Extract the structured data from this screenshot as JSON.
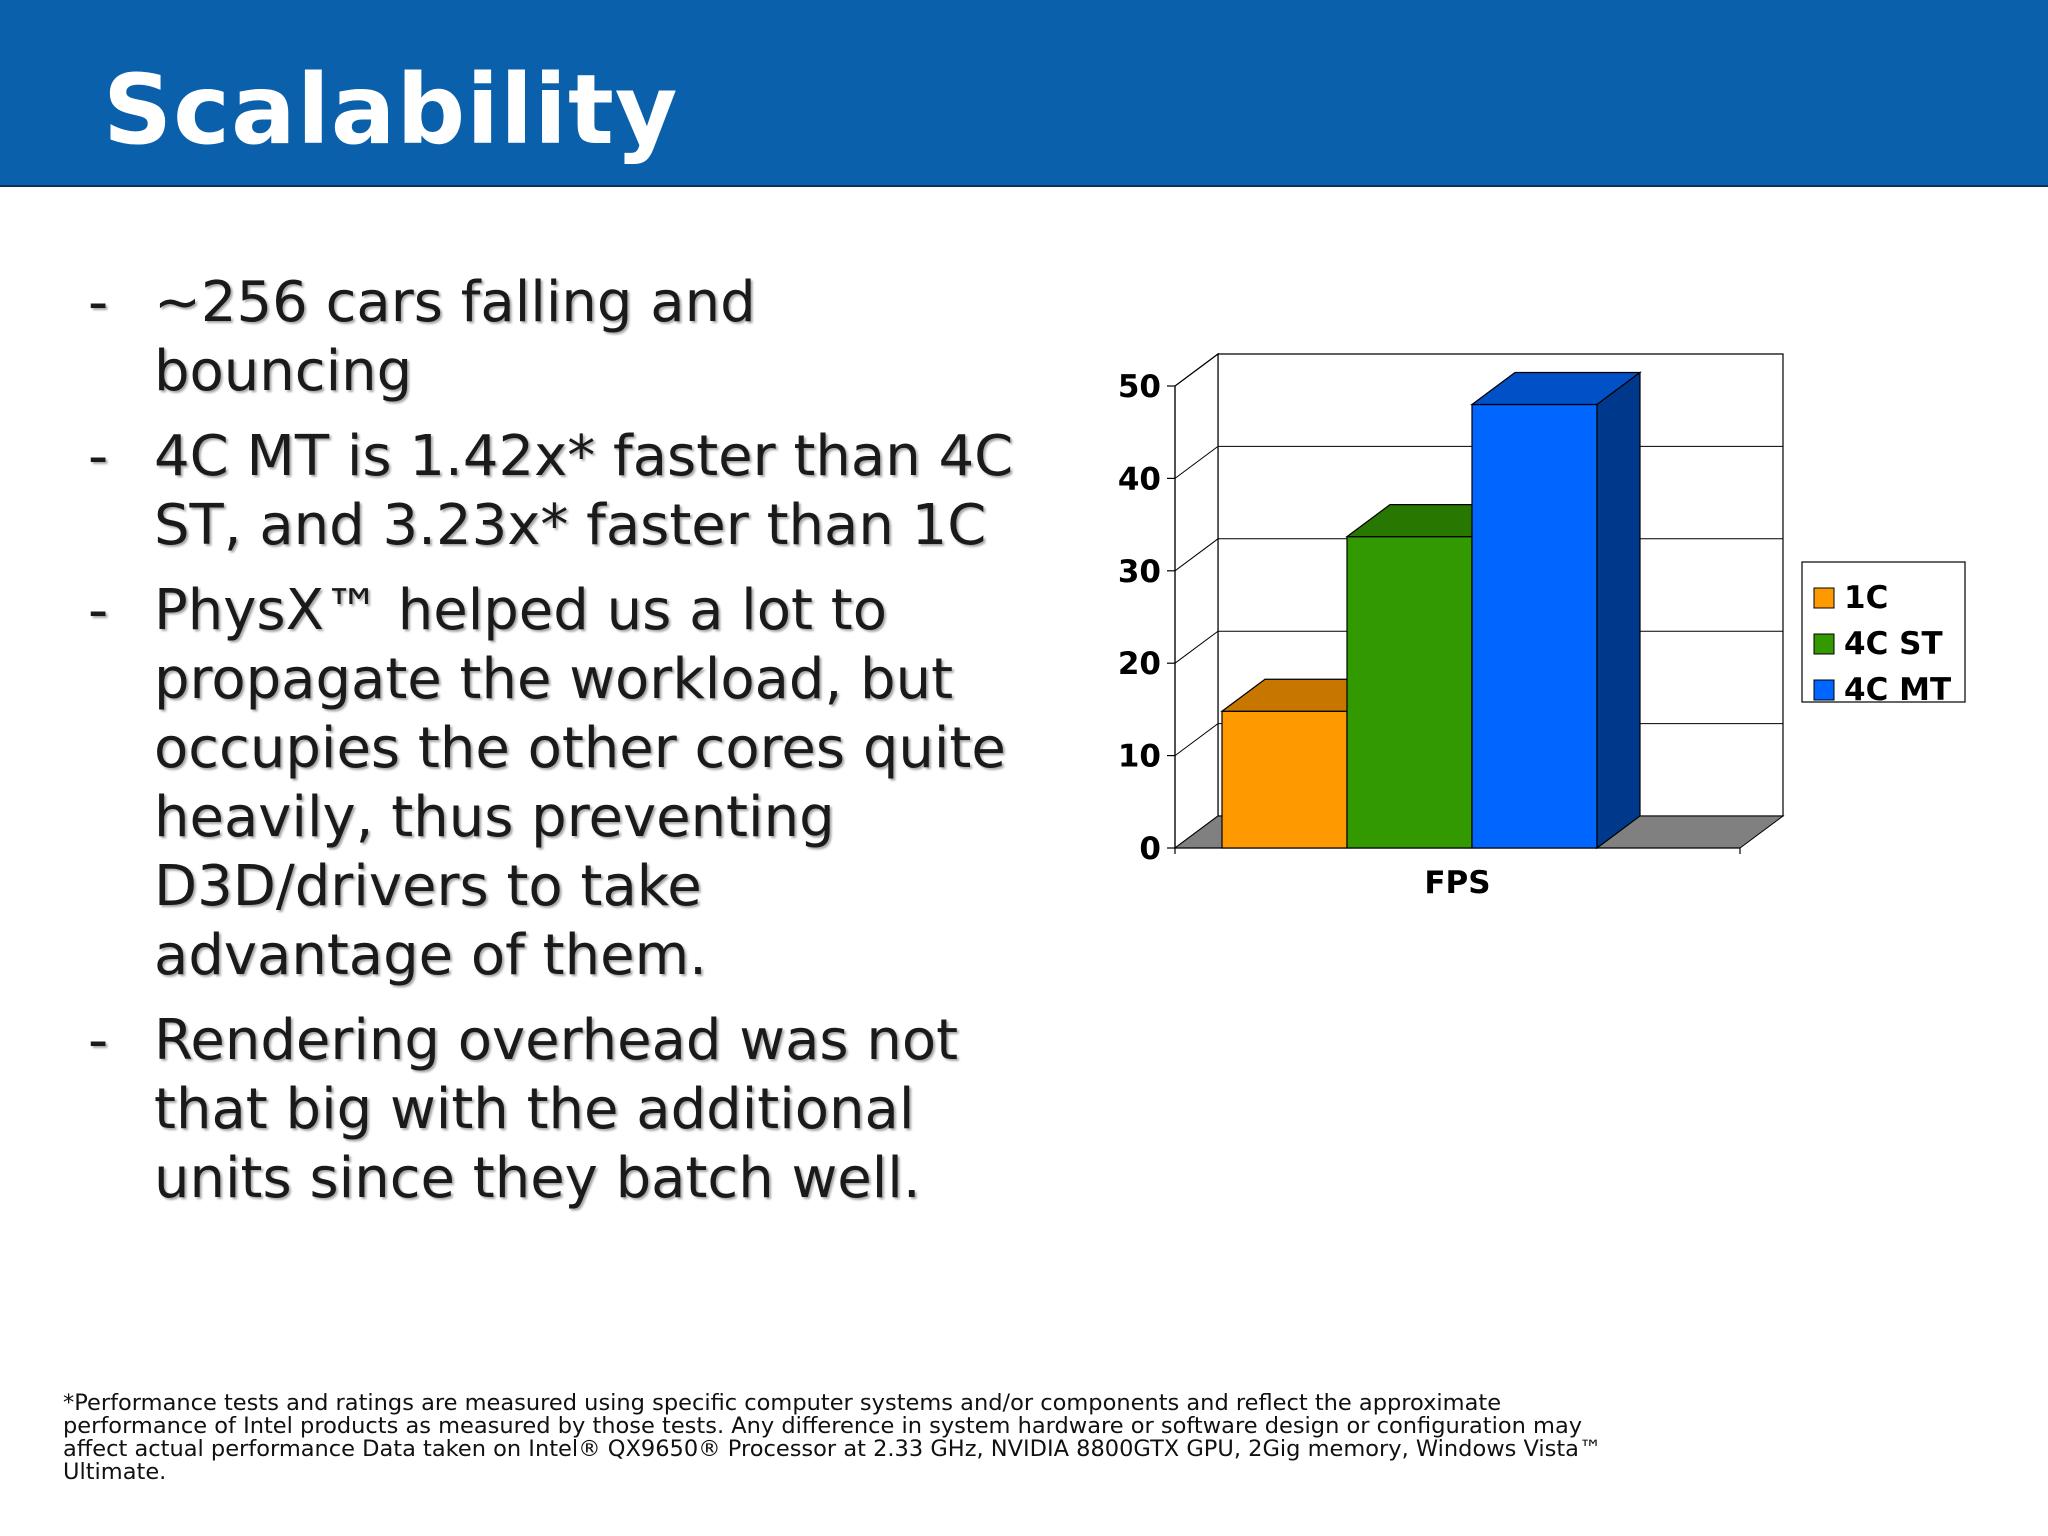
{
  "slide": {
    "title": "Scalability",
    "bullets": [
      "~256 cars falling and bouncing",
      "4C MT is 1.42x* faster than 4C ST, and 3.23x* faster than 1C",
      "PhysX™ helped us a lot to propagate the workload, but occupies the other cores quite heavily, thus preventing D3D/drivers to take advantage of them.",
      "Rendering overhead was not that big with the additional units since they batch well."
    ],
    "bullet_marker": "-",
    "footnote": "*Performance tests and ratings are measured using specific computer systems and/or components and reflect the approximate performance of Intel products as measured by those tests. Any difference in system hardware or software design or configuration may affect actual performance Data taken on Intel® QX9650® Processor at 2.33 GHz, NVIDIA 8800GTX  GPU, 2Gig memory, Windows Vista™ Ultimate."
  },
  "colors": {
    "header": "#0a60aa",
    "title": "#ffffff",
    "text": "#1a1a1a"
  },
  "chart_data": {
    "type": "bar",
    "style": "3d-clustered-column",
    "categories": [
      "FPS"
    ],
    "series": [
      {
        "name": "1C",
        "values": [
          14.8
        ],
        "color": "#ff9900"
      },
      {
        "name": "4C ST",
        "values": [
          33.7
        ],
        "color": "#339900"
      },
      {
        "name": "4C MT",
        "values": [
          48.0
        ],
        "color": "#0066ff"
      }
    ],
    "xlabel": "",
    "ylabel": "",
    "ylim": [
      0,
      50
    ],
    "yticks": [
      "0",
      "10",
      "20",
      "30",
      "40",
      "50"
    ],
    "grid": true,
    "legend_position": "right"
  }
}
